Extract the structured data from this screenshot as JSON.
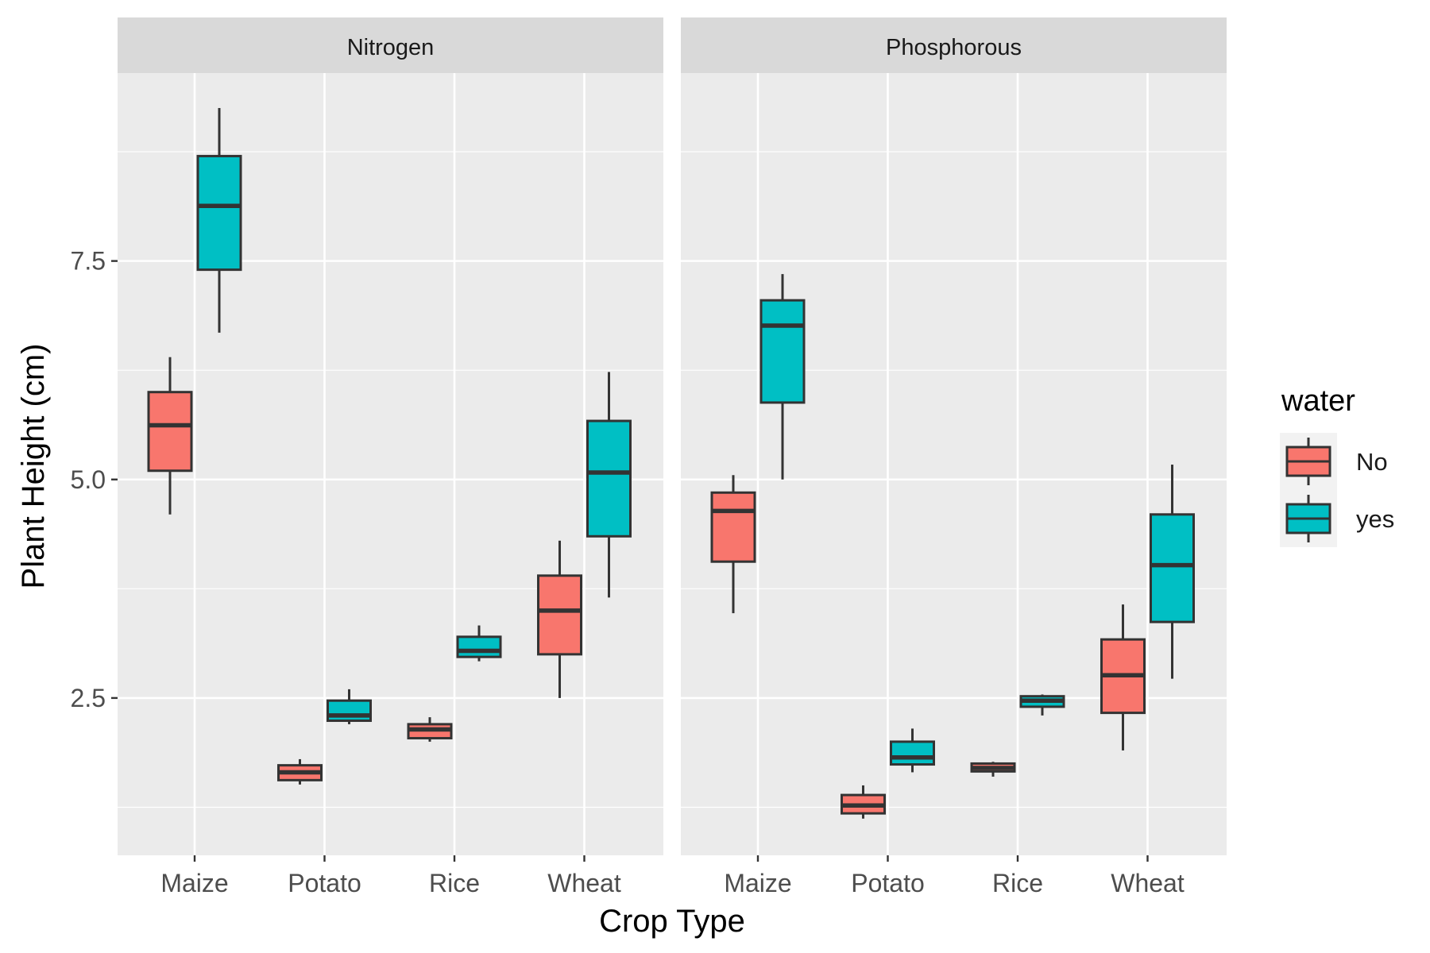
{
  "chart_data": {
    "type": "boxplot",
    "xlabel": "Crop Type",
    "ylabel": "Plant Height (cm)",
    "ylim": [
      0.7,
      9.65
    ],
    "yticks": [
      2.5,
      5.0,
      7.5
    ],
    "ytick_labels": [
      "2.5",
      "5.0",
      "7.5"
    ],
    "categories": [
      "Maize",
      "Potato",
      "Rice",
      "Wheat"
    ],
    "legend": {
      "title": "water",
      "position": "right",
      "entries": [
        {
          "label": "No",
          "color": "#F8766D"
        },
        {
          "label": "yes",
          "color": "#00BFC4"
        }
      ]
    },
    "panels": [
      {
        "title": "Nitrogen",
        "groups": [
          {
            "category": "Maize",
            "water": "No",
            "min": 4.6,
            "q1": 5.1,
            "median": 5.62,
            "q3": 6.0,
            "max": 6.4
          },
          {
            "category": "Maize",
            "water": "yes",
            "min": 6.68,
            "q1": 7.4,
            "median": 8.13,
            "q3": 8.7,
            "max": 9.25
          },
          {
            "category": "Potato",
            "water": "No",
            "min": 1.51,
            "q1": 1.56,
            "median": 1.65,
            "q3": 1.73,
            "max": 1.8
          },
          {
            "category": "Potato",
            "water": "yes",
            "min": 2.2,
            "q1": 2.24,
            "median": 2.3,
            "q3": 2.47,
            "max": 2.6
          },
          {
            "category": "Rice",
            "water": "No",
            "min": 2.0,
            "q1": 2.04,
            "median": 2.14,
            "q3": 2.2,
            "max": 2.28
          },
          {
            "category": "Rice",
            "water": "yes",
            "min": 2.92,
            "q1": 2.97,
            "median": 3.04,
            "q3": 3.2,
            "max": 3.33
          },
          {
            "category": "Wheat",
            "water": "No",
            "min": 2.5,
            "q1": 3.0,
            "median": 3.5,
            "q3": 3.9,
            "max": 4.3
          },
          {
            "category": "Wheat",
            "water": "yes",
            "min": 3.65,
            "q1": 4.35,
            "median": 5.08,
            "q3": 5.67,
            "max": 6.23
          }
        ]
      },
      {
        "title": "Phosphorous",
        "groups": [
          {
            "category": "Maize",
            "water": "No",
            "min": 3.47,
            "q1": 4.06,
            "median": 4.64,
            "q3": 4.85,
            "max": 5.05
          },
          {
            "category": "Maize",
            "water": "yes",
            "min": 5.0,
            "q1": 5.88,
            "median": 6.76,
            "q3": 7.05,
            "max": 7.35
          },
          {
            "category": "Potato",
            "water": "No",
            "min": 1.12,
            "q1": 1.18,
            "median": 1.27,
            "q3": 1.39,
            "max": 1.5
          },
          {
            "category": "Potato",
            "water": "yes",
            "min": 1.65,
            "q1": 1.74,
            "median": 1.82,
            "q3": 2.0,
            "max": 2.15
          },
          {
            "category": "Rice",
            "water": "No",
            "min": 1.6,
            "q1": 1.66,
            "median": 1.7,
            "q3": 1.75,
            "max": 1.77
          },
          {
            "category": "Rice",
            "water": "yes",
            "min": 2.3,
            "q1": 2.4,
            "median": 2.47,
            "q3": 2.52,
            "max": 2.54
          },
          {
            "category": "Wheat",
            "water": "No",
            "min": 1.9,
            "q1": 2.33,
            "median": 2.76,
            "q3": 3.17,
            "max": 3.57
          },
          {
            "category": "Wheat",
            "water": "yes",
            "min": 2.72,
            "q1": 3.37,
            "median": 4.02,
            "q3": 4.6,
            "max": 5.17
          }
        ]
      }
    ],
    "grid": true,
    "panel_background": "#EBEBEB",
    "strip_background": "#D9D9D9",
    "box_outline": "#333333"
  }
}
